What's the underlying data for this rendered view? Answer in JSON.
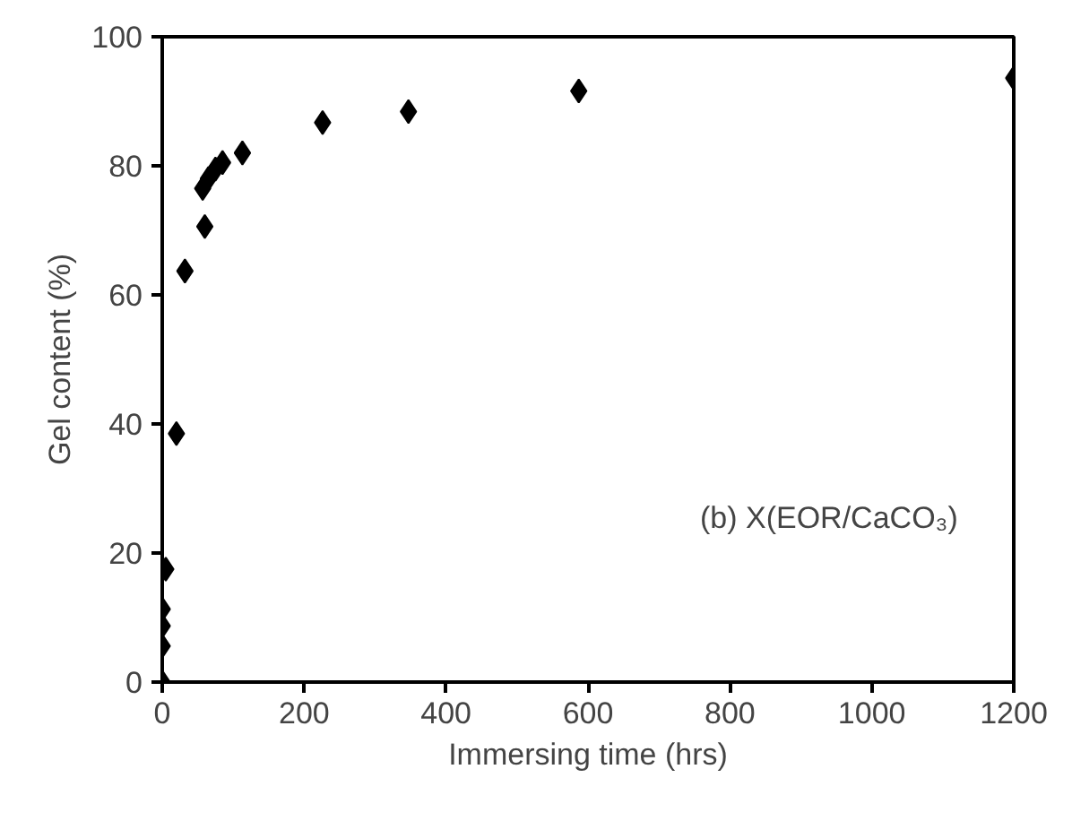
{
  "chart_data": {
    "type": "scatter",
    "xlabel": "Immersing time (hrs)",
    "ylabel": "Gel content (%)",
    "annotations": [
      "(b) X(EOR/CaCO₃)"
    ],
    "x": [
      0,
      0,
      0,
      0,
      5,
      20,
      32,
      60,
      57,
      65,
      75,
      85,
      113,
      226,
      347,
      587,
      1200
    ],
    "series": [
      {
        "color": "#000000",
        "values": [
          0,
          5.6,
          8.7,
          11.3,
          17.5,
          38.5,
          63.7,
          70.6,
          76.5,
          78,
          79.5,
          80.5,
          82,
          86.7,
          88.4,
          91.6,
          93.6
        ]
      }
    ],
    "xlim": [
      0,
      1200
    ],
    "ylim": [
      0,
      100
    ],
    "xticks": [
      0,
      200,
      400,
      600,
      800,
      1000,
      1200
    ],
    "yticks": [
      0,
      20,
      40,
      60,
      80,
      100
    ],
    "grid": false,
    "marker": "diamond"
  }
}
